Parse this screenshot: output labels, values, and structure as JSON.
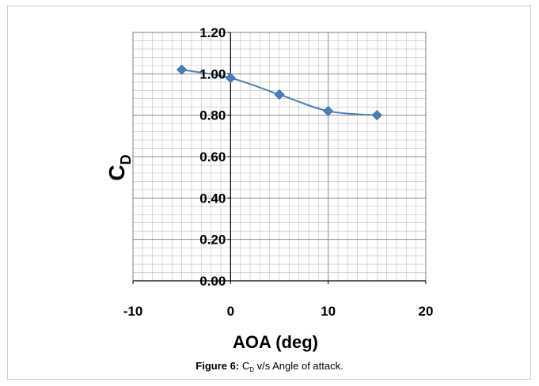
{
  "chart_data": {
    "type": "scatter",
    "smooth_line": true,
    "xlabel": "AOA (deg)",
    "ylabel": {
      "main": "C",
      "subscript": "D"
    },
    "xlim": [
      -10,
      20
    ],
    "ylim": [
      0.0,
      1.2
    ],
    "x_ticks": [
      "-10",
      "0",
      "10",
      "20"
    ],
    "y_ticks": [
      "0.00",
      "0.20",
      "0.40",
      "0.60",
      "0.80",
      "1.00",
      "1.20"
    ],
    "grid": true,
    "series": [
      {
        "points": [
          [
            -5,
            1.02
          ],
          [
            0,
            0.98
          ],
          [
            5,
            0.9
          ],
          [
            10,
            0.82
          ],
          [
            15,
            0.8
          ]
        ]
      }
    ],
    "colors": {
      "series": "#4a7ebb",
      "grid": "#bfbfbf"
    }
  },
  "caption": {
    "label": "Figure 6:",
    "symbol": "C",
    "subscript": "D",
    "text": " v/s Angle of attack."
  }
}
